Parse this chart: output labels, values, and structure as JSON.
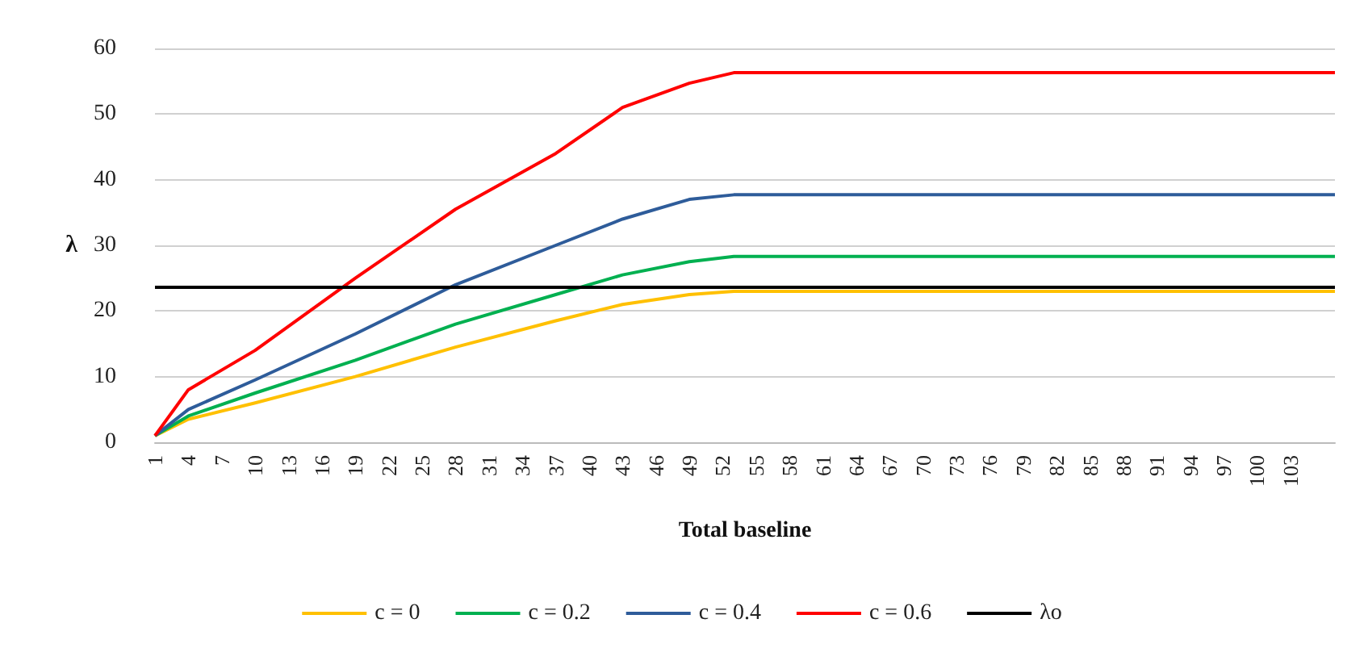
{
  "chart_data": {
    "type": "line",
    "xlabel": "Total baseline",
    "ylabel": "λ",
    "xlim": [
      1,
      107
    ],
    "xticks": [
      1,
      4,
      7,
      10,
      13,
      16,
      19,
      22,
      25,
      28,
      31,
      34,
      37,
      40,
      43,
      46,
      49,
      52,
      55,
      58,
      61,
      64,
      67,
      70,
      73,
      76,
      79,
      82,
      85,
      88,
      91,
      94,
      97,
      100,
      103
    ],
    "ylim": [
      0,
      60
    ],
    "yticks": [
      0,
      10,
      20,
      30,
      40,
      50,
      60
    ],
    "grid": "y",
    "legend": "bottom",
    "marker": "none",
    "line_style": "solid",
    "series": [
      {
        "name": "c = 0",
        "color": "#ffc000",
        "x": [
          1,
          4,
          10,
          19,
          28,
          37,
          43,
          49,
          53,
          107
        ],
        "values": [
          1,
          3.5,
          6,
          10,
          14.5,
          18.5,
          21,
          22.5,
          23,
          23
        ]
      },
      {
        "name": "c = 0.2",
        "color": "#00b050",
        "x": [
          1,
          4,
          10,
          19,
          28,
          37,
          43,
          49,
          53,
          107
        ],
        "values": [
          1,
          4,
          7.5,
          12.5,
          18,
          22.5,
          25.5,
          27.5,
          28.3,
          28.3
        ]
      },
      {
        "name": "c = 0.4",
        "color": "#2e5c9a",
        "x": [
          1,
          4,
          10,
          19,
          28,
          37,
          43,
          49,
          53,
          107
        ],
        "values": [
          1,
          5,
          9.5,
          16.5,
          24,
          30,
          34,
          37,
          37.7,
          37.7
        ]
      },
      {
        "name": "c = 0.6",
        "color": "#ff0000",
        "x": [
          1,
          4,
          10,
          19,
          28,
          37,
          43,
          49,
          53,
          107
        ],
        "values": [
          1,
          8,
          14,
          25,
          35.5,
          44,
          51,
          54.7,
          56.3,
          56.3
        ]
      },
      {
        "name": "λo",
        "color": "#000000",
        "x": [
          1,
          107
        ],
        "values": [
          23.6,
          23.6
        ]
      }
    ]
  }
}
